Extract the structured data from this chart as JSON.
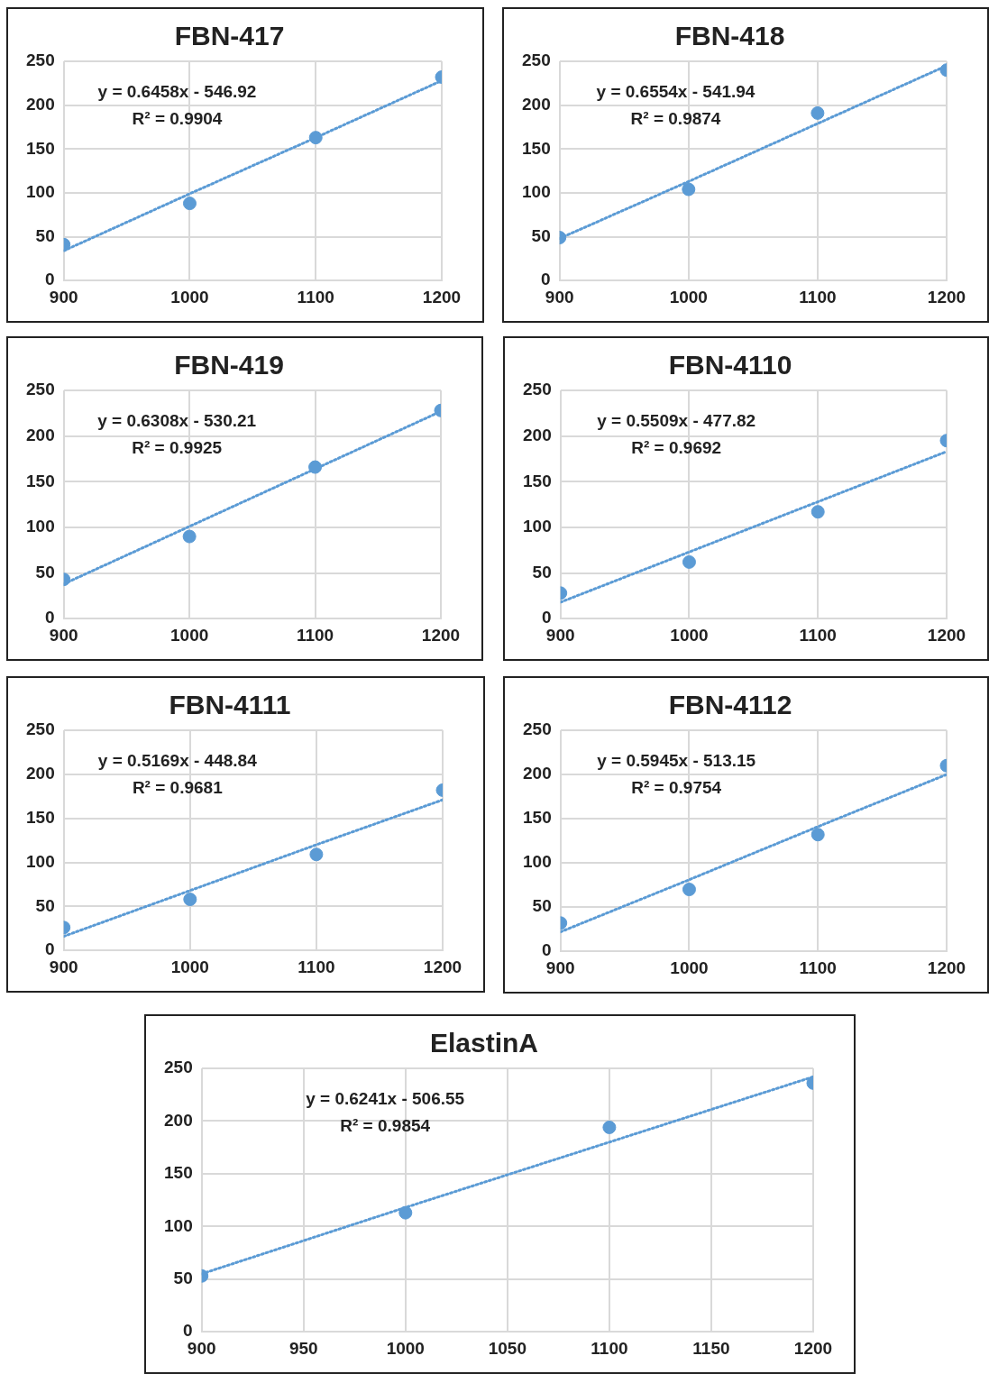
{
  "chart_data": [
    {
      "type": "scatter",
      "title": "FBN-417",
      "x": [
        900,
        1000,
        1100,
        1200
      ],
      "xlim": [
        900,
        1200
      ],
      "xticks": [
        900,
        1000,
        1100,
        1200
      ],
      "ylim": [
        0,
        250
      ],
      "yticks": [
        0,
        50,
        100,
        150,
        200,
        250
      ],
      "grid": true,
      "legend": false,
      "marker": "circle",
      "annotations": [
        "y = 0.6458x - 546.92",
        "R² = 0.9904"
      ],
      "series": [
        {
          "color": "#5b9bd5",
          "values": [
            41,
            88,
            163,
            232
          ]
        },
        {
          "type": "line",
          "color": "#5b9bd5",
          "line_style": "dotted",
          "marker": "none",
          "values": [
            34,
            99,
            163,
            228
          ]
        }
      ]
    },
    {
      "type": "scatter",
      "title": "FBN-418",
      "x": [
        900,
        1000,
        1100,
        1200
      ],
      "xlim": [
        900,
        1200
      ],
      "xticks": [
        900,
        1000,
        1100,
        1200
      ],
      "ylim": [
        0,
        250
      ],
      "yticks": [
        0,
        50,
        100,
        150,
        200,
        250
      ],
      "grid": true,
      "legend": false,
      "marker": "circle",
      "annotations": [
        "y = 0.6554x - 541.94",
        "R² = 0.9874"
      ],
      "series": [
        {
          "color": "#5b9bd5",
          "values": [
            49,
            104,
            191,
            240
          ]
        },
        {
          "type": "line",
          "color": "#5b9bd5",
          "line_style": "dotted",
          "marker": "none",
          "values": [
            48,
            113,
            179,
            245
          ]
        }
      ]
    },
    {
      "type": "scatter",
      "title": "FBN-419",
      "x": [
        900,
        1000,
        1100,
        1200
      ],
      "xlim": [
        900,
        1200
      ],
      "xticks": [
        900,
        1000,
        1100,
        1200
      ],
      "ylim": [
        0,
        250
      ],
      "yticks": [
        0,
        50,
        100,
        150,
        200,
        250
      ],
      "grid": true,
      "legend": false,
      "marker": "circle",
      "annotations": [
        "y = 0.6308x - 530.21",
        "R² = 0.9925"
      ],
      "series": [
        {
          "color": "#5b9bd5",
          "values": [
            43,
            90,
            166,
            228
          ]
        },
        {
          "type": "line",
          "color": "#5b9bd5",
          "line_style": "dotted",
          "marker": "none",
          "values": [
            38,
            101,
            164,
            227
          ]
        }
      ]
    },
    {
      "type": "scatter",
      "title": "FBN-4110",
      "x": [
        900,
        1000,
        1100,
        1200
      ],
      "xlim": [
        900,
        1200
      ],
      "xticks": [
        900,
        1000,
        1100,
        1200
      ],
      "ylim": [
        0,
        250
      ],
      "yticks": [
        0,
        50,
        100,
        150,
        200,
        250
      ],
      "grid": true,
      "legend": false,
      "marker": "circle",
      "annotations": [
        "y = 0.5509x - 477.82",
        "R² = 0.9692"
      ],
      "series": [
        {
          "color": "#5b9bd5",
          "values": [
            28,
            62,
            117,
            195
          ]
        },
        {
          "type": "line",
          "color": "#5b9bd5",
          "line_style": "dotted",
          "marker": "none",
          "values": [
            18,
            73,
            128,
            183
          ]
        }
      ]
    },
    {
      "type": "scatter",
      "title": "FBN-4111",
      "x": [
        900,
        1000,
        1100,
        1200
      ],
      "xlim": [
        900,
        1200
      ],
      "xticks": [
        900,
        1000,
        1100,
        1200
      ],
      "ylim": [
        0,
        250
      ],
      "yticks": [
        0,
        50,
        100,
        150,
        200,
        250
      ],
      "grid": true,
      "legend": false,
      "marker": "circle",
      "annotations": [
        "y = 0.5169x - 448.84",
        "R² = 0.9681"
      ],
      "series": [
        {
          "color": "#5b9bd5",
          "values": [
            26,
            58,
            109,
            182
          ]
        },
        {
          "type": "line",
          "color": "#5b9bd5",
          "line_style": "dotted",
          "marker": "none",
          "values": [
            16,
            68,
            120,
            171
          ]
        }
      ]
    },
    {
      "type": "scatter",
      "title": "FBN-4112",
      "x": [
        900,
        1000,
        1100,
        1200
      ],
      "xlim": [
        900,
        1200
      ],
      "xticks": [
        900,
        1000,
        1100,
        1200
      ],
      "ylim": [
        0,
        250
      ],
      "yticks": [
        0,
        50,
        100,
        150,
        200,
        250
      ],
      "grid": true,
      "legend": false,
      "marker": "circle",
      "annotations": [
        "y = 0.5945x - 513.15",
        "R² = 0.9754"
      ],
      "series": [
        {
          "color": "#5b9bd5",
          "values": [
            32,
            70,
            132,
            210
          ]
        },
        {
          "type": "line",
          "color": "#5b9bd5",
          "line_style": "dotted",
          "marker": "none",
          "values": [
            22,
            81,
            141,
            200
          ]
        }
      ]
    },
    {
      "type": "scatter",
      "title": "ElastinA",
      "x": [
        900,
        1000,
        1100,
        1200
      ],
      "xlim": [
        900,
        1200
      ],
      "xticks": [
        900,
        950,
        1000,
        1050,
        1100,
        1150,
        1200
      ],
      "ylim": [
        0,
        250
      ],
      "yticks": [
        0,
        50,
        100,
        150,
        200,
        250
      ],
      "grid": true,
      "legend": false,
      "marker": "circle",
      "annotations": [
        "y = 0.6241x - 506.55",
        "R² = 0.9854"
      ],
      "series": [
        {
          "color": "#5b9bd5",
          "values": [
            53,
            113,
            194,
            236
          ]
        },
        {
          "type": "line",
          "color": "#5b9bd5",
          "line_style": "dotted",
          "marker": "none",
          "values": [
            55,
            118,
            180,
            242
          ]
        }
      ]
    }
  ]
}
